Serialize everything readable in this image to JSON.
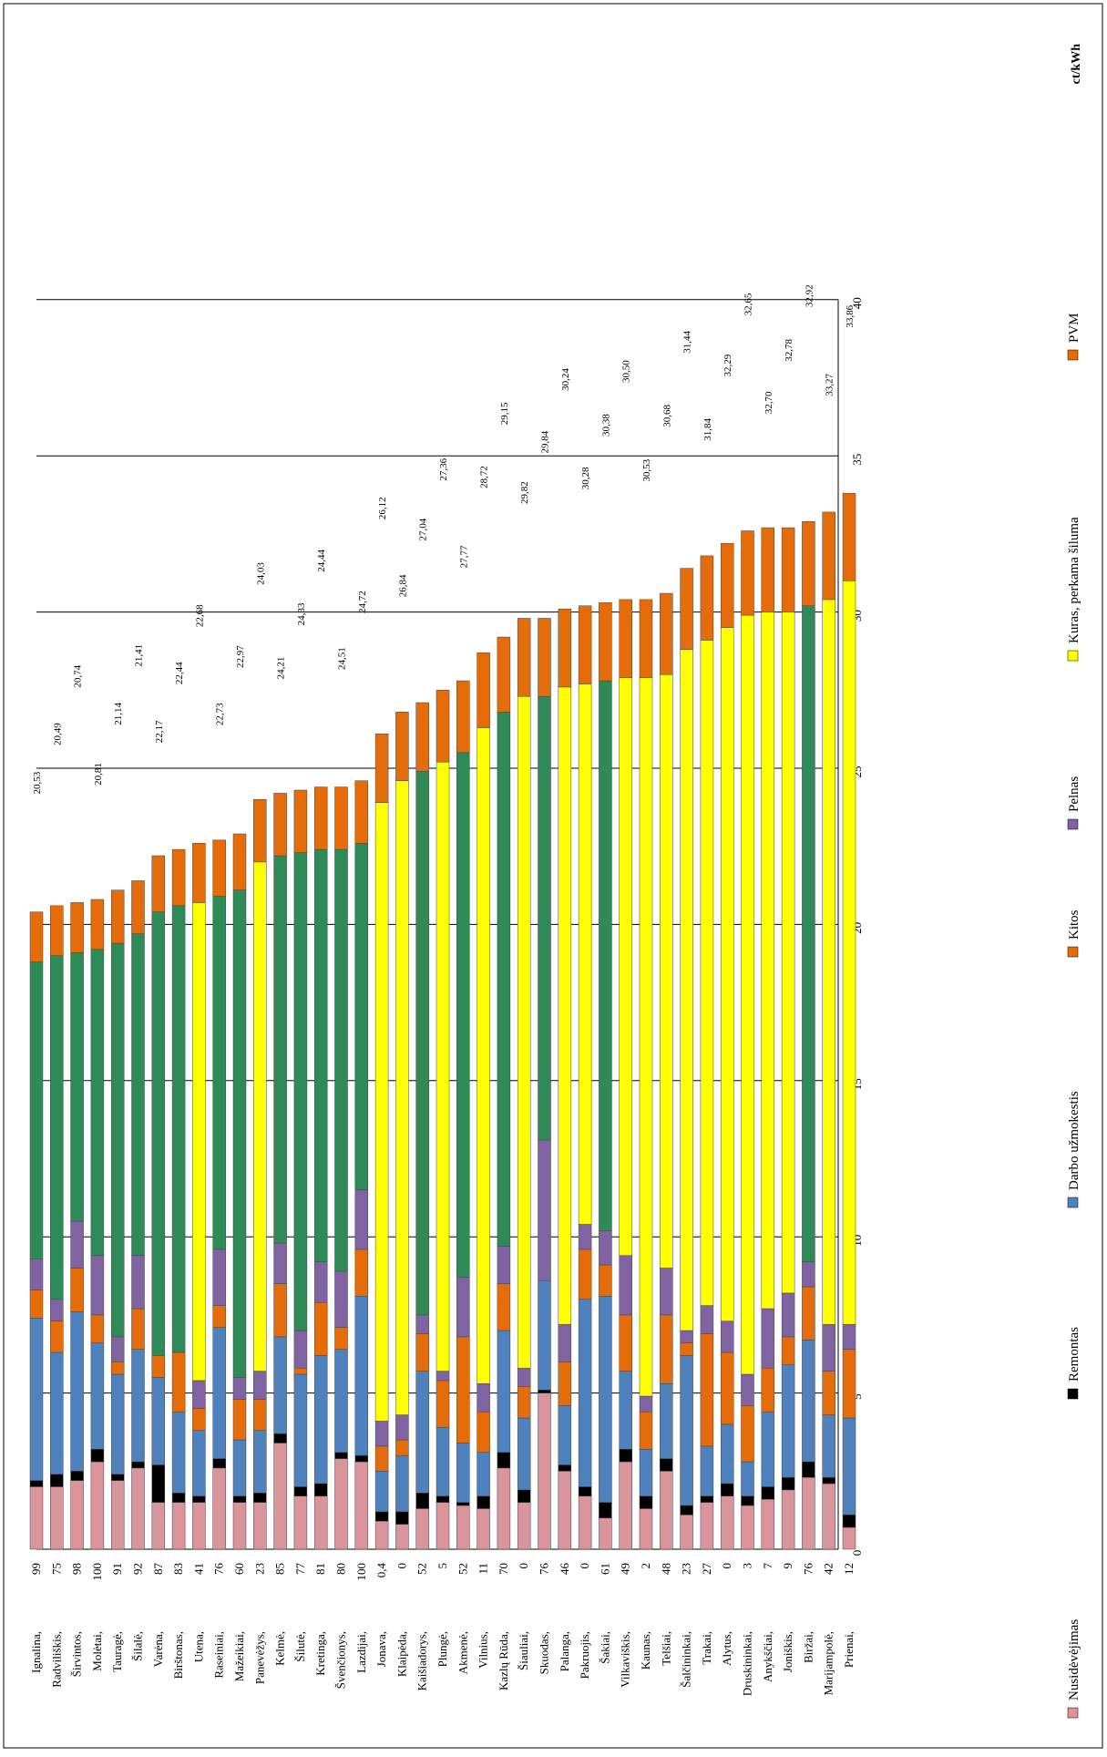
{
  "chart_data": {
    "type": "bar",
    "stacked": true,
    "orientation": "horizontal",
    "unit_label": "ct/kWh",
    "xlim": [
      0,
      40
    ],
    "ticks": [
      0,
      5,
      10,
      15,
      20,
      25,
      30,
      35,
      40
    ],
    "grid": true,
    "legend_position": "bottom",
    "categories": [
      "Ignalina",
      "Radviliškis",
      "Širvintos",
      "Molėtai",
      "Tauragė",
      "Šilalė",
      "Varėna",
      "Birštonas",
      "Utena",
      "Raseiniai",
      "Mažeikiai",
      "Panevėžys",
      "Kelmė",
      "Šilutė",
      "Kretinga",
      "Švenčionys",
      "Lazdijai",
      "Jonava",
      "Klaipėda",
      "Kaišiadorys",
      "Plungė",
      "Akmenė",
      "Vilnius",
      "Kazlų Rūda",
      "Šiauliai",
      "Skuodas",
      "Palanga",
      "Pakruojis",
      "Šakiai",
      "Vilkaviškis",
      "Kaunas",
      "Telšiai",
      "Šalčininkai",
      "Trakai",
      "Alytus",
      "Druskininkai",
      "Anykščiai",
      "Joniškis",
      "Biržai",
      "Marijampolė",
      "Prienai"
    ],
    "category_values": [
      "99",
      "75",
      "98",
      "100",
      "91",
      "92",
      "87",
      "83",
      "41",
      "76",
      "60",
      "23",
      "85",
      "77",
      "81",
      "80",
      "100",
      "0,4",
      "0",
      "52",
      "5",
      "52",
      "11",
      "70",
      "0",
      "76",
      "46",
      "0",
      "61",
      "49",
      "2",
      "48",
      "23",
      "27",
      "0",
      "3",
      "7",
      "9",
      "76",
      "42",
      "12"
    ],
    "totals": [
      "20,53",
      "20,49",
      "20,74",
      "20,81",
      "21,14",
      "21,41",
      "22,17",
      "22,44",
      "22,68",
      "22,73",
      "22,97",
      "24,03",
      "24,21",
      "24,33",
      "24,44",
      "24,51",
      "24,72",
      "26,12",
      "26,84",
      "27,04",
      "27,36",
      "27,77",
      "28,72",
      "29,15",
      "29,82",
      "29,84",
      "30,24",
      "30,28",
      "30,38",
      "30,50",
      "30,53",
      "30,68",
      "31,44",
      "31,84",
      "32,29",
      "32,65",
      "32,70",
      "32,78",
      "32,92",
      "33,27",
      "33,86"
    ],
    "series": [
      {
        "name": "Nusidėvėjimas",
        "color": "#d9959b",
        "values": [
          2.0,
          2.0,
          2.2,
          2.8,
          2.2,
          2.6,
          1.5,
          1.5,
          1.5,
          2.6,
          1.5,
          1.5,
          3.4,
          1.7,
          1.7,
          2.9,
          2.8,
          0.9,
          0.8,
          1.3,
          1.5,
          1.4,
          1.3,
          2.6,
          1.5,
          5.0,
          2.5,
          1.7,
          1.0,
          2.8,
          1.3,
          2.5,
          1.1,
          1.5,
          1.7,
          1.4,
          1.6,
          1.9,
          2.3,
          2.1,
          0.7
        ]
      },
      {
        "name": "Remontas",
        "color": "#000000",
        "values": [
          0.2,
          0.4,
          0.3,
          0.4,
          0.2,
          0.2,
          1.2,
          0.3,
          0.2,
          0.3,
          0.2,
          0.3,
          0.3,
          0.3,
          0.4,
          0.2,
          0.2,
          0.3,
          0.4,
          0.5,
          0.2,
          0.1,
          0.4,
          0.5,
          0.4,
          0.1,
          0.2,
          0.3,
          0.5,
          0.4,
          0.4,
          0.4,
          0.3,
          0.2,
          0.4,
          0.3,
          0.4,
          0.4,
          0.5,
          0.2,
          0.4
        ]
      },
      {
        "name": "Darbo užmokestis",
        "color": "#4f81bd",
        "values": [
          5.2,
          3.9,
          5.1,
          3.4,
          3.2,
          3.6,
          2.8,
          2.6,
          2.1,
          4.2,
          1.8,
          2.0,
          3.1,
          3.6,
          4.1,
          3.3,
          5.1,
          1.3,
          1.8,
          3.9,
          2.2,
          1.9,
          1.4,
          3.9,
          2.3,
          3.5,
          1.9,
          6.0,
          6.6,
          2.5,
          1.5,
          2.4,
          4.8,
          1.6,
          1.9,
          1.1,
          2.4,
          3.6,
          3.9,
          2.0,
          3.1
        ]
      },
      {
        "name": "Kitos",
        "color": "#e46c0a",
        "values": [
          0.9,
          1.0,
          1.4,
          0.9,
          0.4,
          1.3,
          0.7,
          1.9,
          0.7,
          0.7,
          1.3,
          1.0,
          1.7,
          0.2,
          1.7,
          0.7,
          1.5,
          0.8,
          0.5,
          1.2,
          1.5,
          3.4,
          1.3,
          1.5,
          1.0,
          0.0,
          1.4,
          1.6,
          1.0,
          1.8,
          1.2,
          2.2,
          0.4,
          3.6,
          2.3,
          1.8,
          1.4,
          0.9,
          1.7,
          1.4,
          2.2
        ]
      },
      {
        "name": "Pelnas",
        "color": "#8064a2",
        "values": [
          1.0,
          0.7,
          1.5,
          1.9,
          0.8,
          1.7,
          0.0,
          0.0,
          0.9,
          1.8,
          0.7,
          0.9,
          1.3,
          1.2,
          1.3,
          1.8,
          1.9,
          0.8,
          0.8,
          0.6,
          0.3,
          1.9,
          0.9,
          1.2,
          0.6,
          4.5,
          1.2,
          0.8,
          1.1,
          1.9,
          0.5,
          1.5,
          0.4,
          0.9,
          1.0,
          1.0,
          1.9,
          1.4,
          0.8,
          1.5,
          0.8
        ]
      },
      {
        "name": "Kuras, perkama šiluma",
        "color": "#ffff00",
        "values": [
          0.0,
          0.0,
          0.0,
          0.0,
          0.0,
          0.0,
          0.0,
          0.0,
          15.3,
          0.0,
          0.0,
          16.3,
          0.0,
          0.0,
          0.0,
          0.0,
          0.0,
          19.8,
          20.3,
          0.0,
          19.5,
          0.0,
          21.0,
          0.0,
          21.5,
          0.0,
          20.4,
          17.3,
          0.0,
          18.5,
          23.0,
          19.0,
          21.8,
          21.3,
          22.2,
          24.3,
          22.3,
          21.8,
          0.0,
          23.2,
          23.8
        ]
      },
      {
        "name": "",
        "color": "#2e8b57",
        "values": [
          9.5,
          11.0,
          8.6,
          9.8,
          12.6,
          10.3,
          14.2,
          14.3,
          0.0,
          11.3,
          15.6,
          0.0,
          12.4,
          15.3,
          13.2,
          13.5,
          11.1,
          0.0,
          0.0,
          17.4,
          0.0,
          16.8,
          0.0,
          17.1,
          0.0,
          14.2,
          0.0,
          0.0,
          17.6,
          0.0,
          0.0,
          0.0,
          0.0,
          0.0,
          0.0,
          0.0,
          0.0,
          0.0,
          21.0,
          0.0,
          0.0
        ]
      },
      {
        "name": "PVM",
        "color": "#e46c0a",
        "values": [
          1.6,
          1.6,
          1.6,
          1.6,
          1.7,
          1.7,
          1.8,
          1.8,
          1.9,
          1.8,
          1.8,
          2.0,
          2.0,
          2.0,
          2.0,
          2.0,
          2.0,
          2.2,
          2.2,
          2.2,
          2.3,
          2.3,
          2.4,
          2.4,
          2.5,
          2.5,
          2.5,
          2.5,
          2.5,
          2.5,
          2.5,
          2.6,
          2.6,
          2.7,
          2.7,
          2.7,
          2.7,
          2.7,
          2.7,
          2.8,
          2.8
        ]
      }
    ]
  }
}
